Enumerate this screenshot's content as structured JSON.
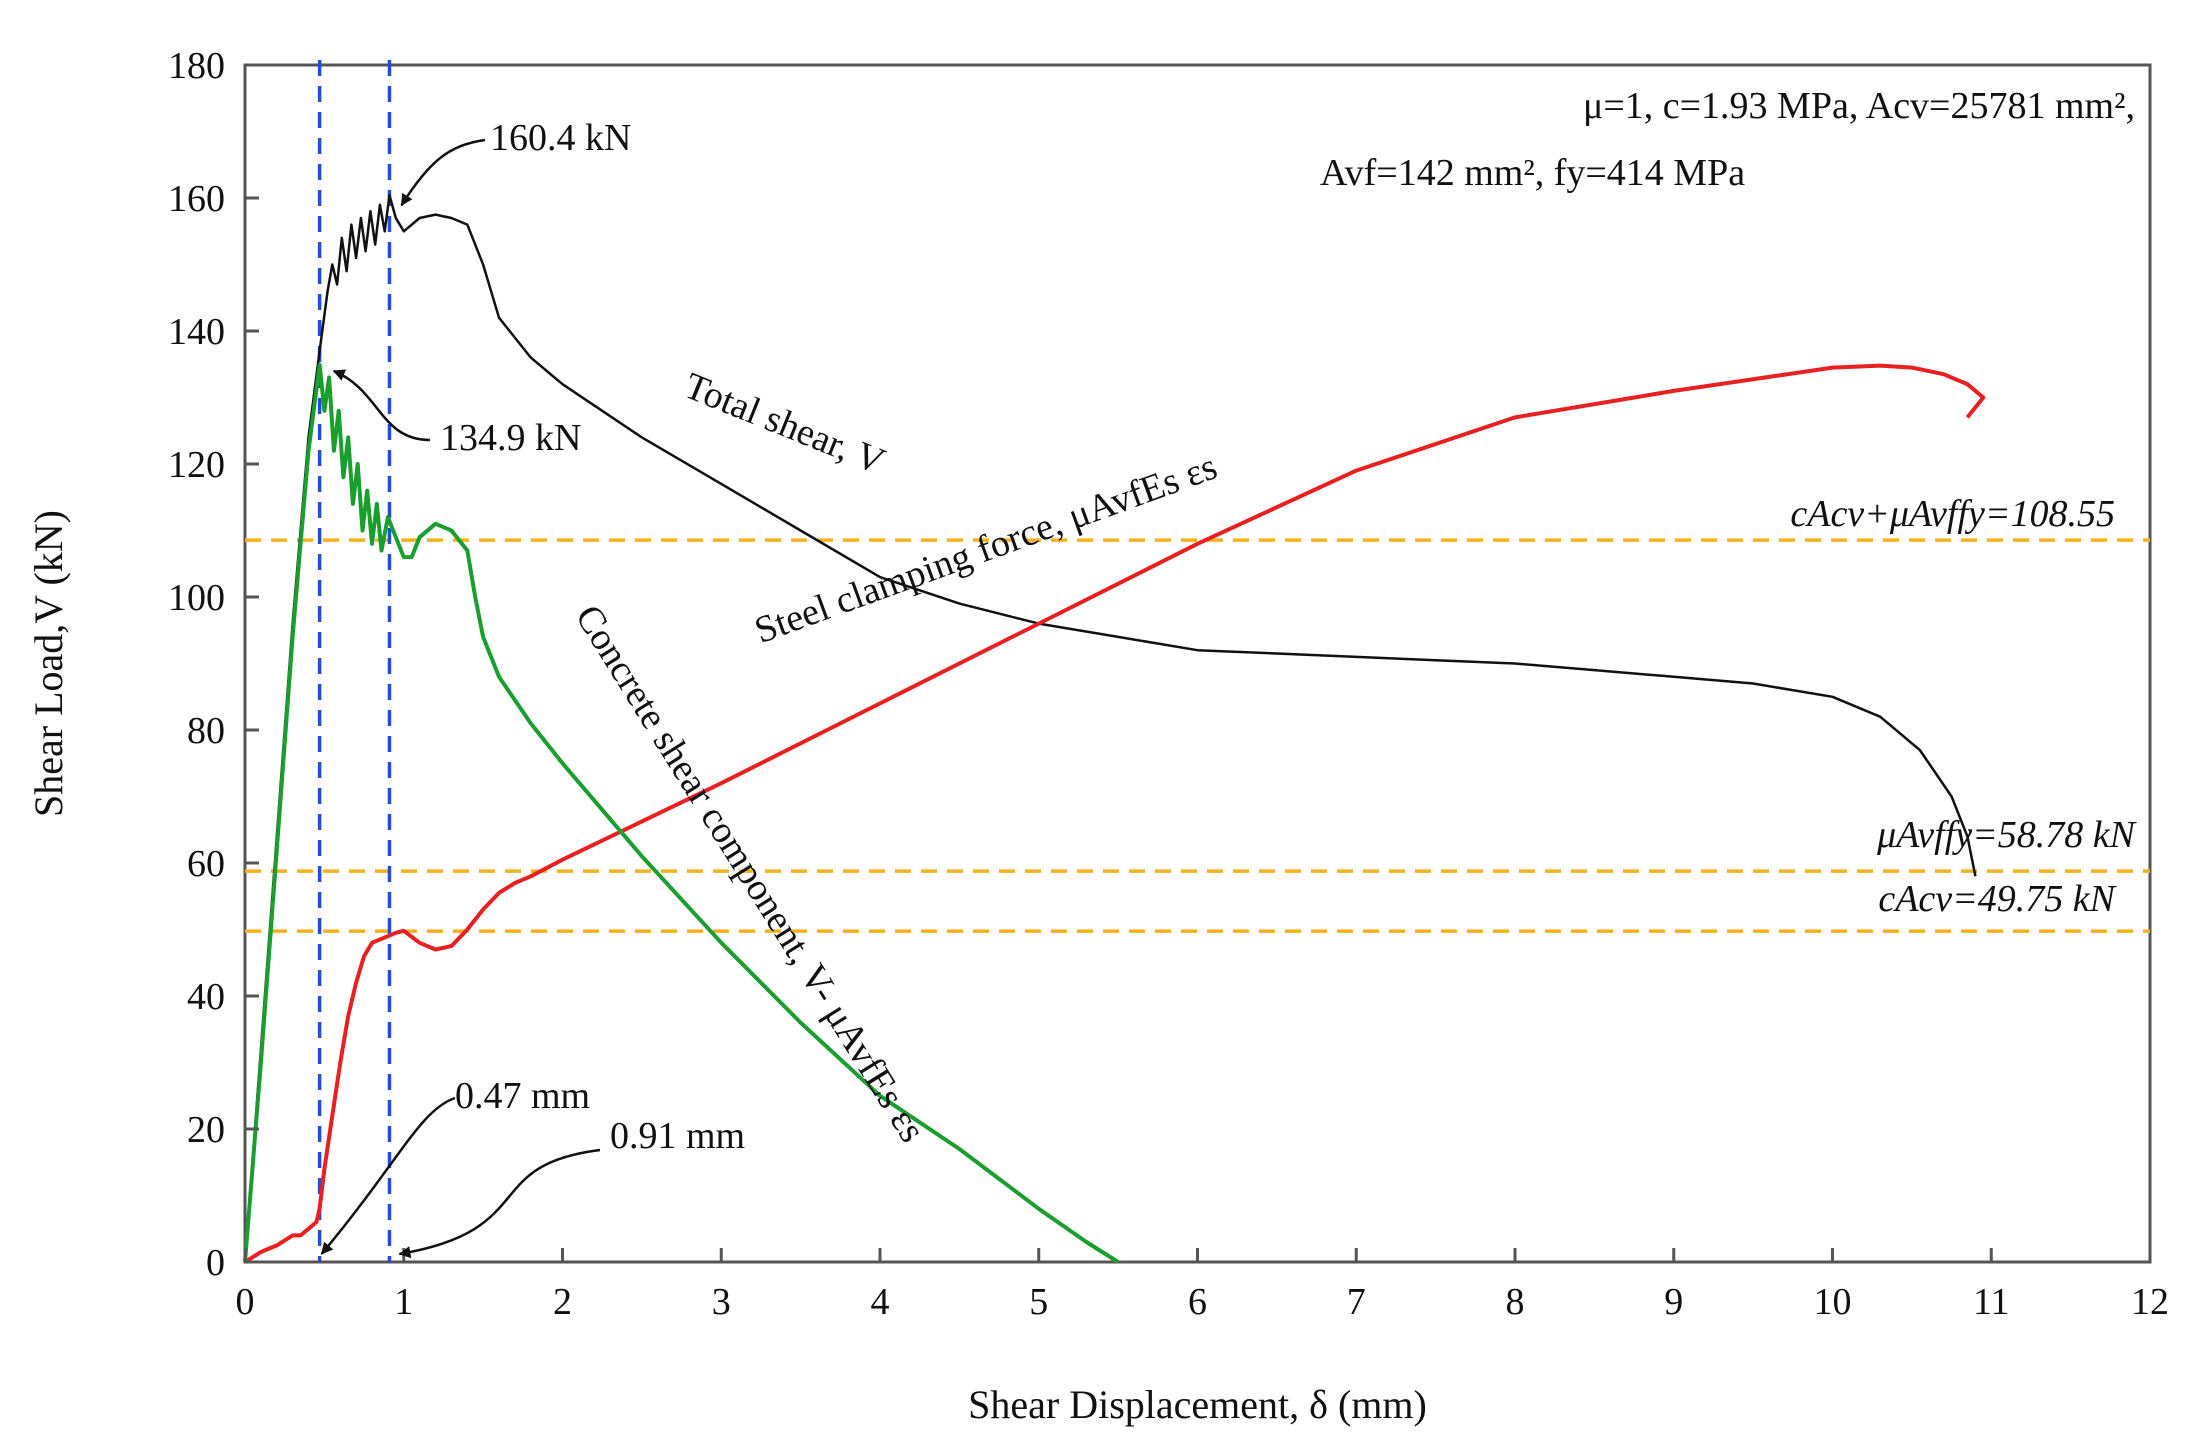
{
  "chart_data": {
    "type": "line",
    "title": "",
    "xlabel": "Shear Displacement, δ (mm)",
    "ylabel": "Shear Load,V (kN)",
    "xlim": [
      0,
      12
    ],
    "ylim": [
      0,
      180
    ],
    "x_ticks": [
      0,
      1,
      2,
      3,
      4,
      5,
      6,
      7,
      8,
      9,
      10,
      11,
      12
    ],
    "y_ticks": [
      0,
      20,
      40,
      60,
      80,
      100,
      120,
      140,
      160,
      180
    ],
    "grid": false,
    "parameters": {
      "line1": "μ=1, c=1.93 MPa, Acv=25781 mm², ",
      "line2": "Avf=142 mm², fy=414 MPa"
    },
    "series": [
      {
        "name": "Total shear, V",
        "color": "#111111",
        "x": [
          0,
          0.1,
          0.2,
          0.3,
          0.4,
          0.47,
          0.52,
          0.55,
          0.58,
          0.61,
          0.64,
          0.67,
          0.7,
          0.73,
          0.76,
          0.79,
          0.82,
          0.85,
          0.88,
          0.91,
          0.95,
          1.0,
          1.1,
          1.2,
          1.3,
          1.4,
          1.5,
          1.6,
          1.8,
          2.0,
          2.5,
          3.0,
          3.5,
          4.0,
          4.5,
          5.0,
          5.5,
          6.0,
          6.5,
          7.0,
          7.5,
          8.0,
          8.5,
          9.0,
          9.5,
          10.0,
          10.3,
          10.55,
          10.75,
          10.85,
          10.9
        ],
        "y": [
          0,
          32,
          64,
          96,
          124,
          137,
          146,
          150,
          147,
          154,
          149,
          156,
          151,
          157,
          152,
          158,
          153,
          159,
          155,
          160.4,
          157,
          155,
          157,
          157.5,
          157,
          156,
          150,
          142,
          136,
          132,
          124,
          117,
          110,
          103,
          99,
          96,
          94,
          92,
          91.5,
          91,
          90.5,
          90,
          89,
          88,
          87,
          85,
          82,
          77,
          70,
          64,
          58
        ]
      },
      {
        "name": "Steel clamping force, μAvfEs εs",
        "color": "#e82020",
        "x": [
          0,
          0.1,
          0.2,
          0.3,
          0.35,
          0.4,
          0.45,
          0.47,
          0.5,
          0.55,
          0.6,
          0.65,
          0.7,
          0.75,
          0.8,
          0.85,
          0.9,
          0.95,
          1.0,
          1.1,
          1.2,
          1.3,
          1.4,
          1.5,
          1.6,
          1.7,
          1.8,
          2.0,
          3.0,
          4.0,
          5.0,
          6.0,
          7.0,
          8.0,
          9.0,
          10.0,
          10.3,
          10.5,
          10.7,
          10.85,
          10.95,
          10.85
        ],
        "y": [
          0,
          1.5,
          2.5,
          4,
          4,
          5,
          6,
          8,
          14,
          22,
          30,
          37,
          42,
          46,
          48,
          48.5,
          49,
          49.5,
          49.8,
          48,
          47,
          47.5,
          50,
          53,
          55.5,
          57,
          58,
          60.5,
          72,
          84,
          96,
          108,
          119,
          127,
          131,
          134.5,
          134.8,
          134.5,
          133.5,
          132,
          130,
          127
        ]
      },
      {
        "name": "Concrete shear component, V- μAvfEs εs",
        "color": "#1a9e2e",
        "x": [
          0,
          0.1,
          0.2,
          0.3,
          0.4,
          0.47,
          0.5,
          0.53,
          0.56,
          0.59,
          0.62,
          0.65,
          0.68,
          0.71,
          0.74,
          0.77,
          0.8,
          0.83,
          0.86,
          0.9,
          0.95,
          1.0,
          1.05,
          1.1,
          1.2,
          1.3,
          1.4,
          1.45,
          1.5,
          1.6,
          1.8,
          2.0,
          2.5,
          3.0,
          3.5,
          4.0,
          4.5,
          5.0,
          5.3,
          5.5
        ],
        "y": [
          0,
          30,
          62,
          94,
          122,
          134.9,
          128,
          133,
          122,
          128,
          118,
          124,
          114,
          120,
          110,
          116,
          108,
          114,
          107,
          112,
          109,
          106,
          106,
          109,
          111,
          110,
          107,
          100,
          94,
          88,
          81,
          75,
          61,
          48,
          36,
          25,
          17,
          8,
          3,
          0
        ]
      }
    ],
    "reference_lines": [
      {
        "label": "cAcv+μAvffy=108.55",
        "y": 108.55,
        "color": "#f5b120",
        "style": "dashed",
        "orientation": "horizontal"
      },
      {
        "label": "μAvffy=58.78 kN",
        "y": 58.78,
        "color": "#f5b120",
        "style": "dashed",
        "orientation": "horizontal"
      },
      {
        "label": "cAcv=49.75 kN",
        "y": 49.75,
        "color": "#f5b120",
        "style": "dashed",
        "orientation": "horizontal"
      },
      {
        "label": "0.47 mm",
        "x": 0.47,
        "color": "#1f4fd8",
        "style": "dashed",
        "orientation": "vertical"
      },
      {
        "label": "0.91 mm",
        "x": 0.91,
        "color": "#1f4fd8",
        "style": "dashed",
        "orientation": "vertical"
      }
    ],
    "annotations": [
      {
        "text": "160.4 kN",
        "x": 0.91,
        "y": 160.4
      },
      {
        "text": "134.9 kN",
        "x": 0.47,
        "y": 134.9
      },
      {
        "text": "0.47 mm",
        "x": 0.47,
        "y": 0
      },
      {
        "text": "0.91 mm",
        "x": 0.91,
        "y": 0
      }
    ],
    "curve_labels": [
      {
        "text": "Total shear, V",
        "series": 0
      },
      {
        "text": "Steel clamping force, μAvfEs εs",
        "series": 1
      },
      {
        "text": "Concrete shear component, V- μAvfEs εs",
        "series": 2
      }
    ]
  }
}
